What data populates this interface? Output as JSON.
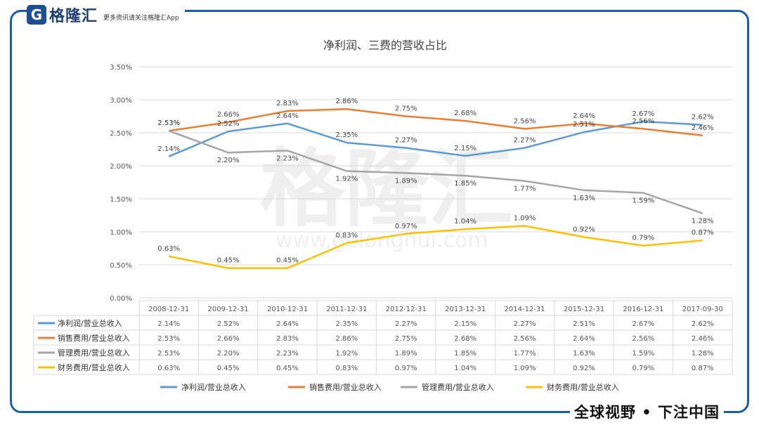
{
  "brand": {
    "logo_letter": "G",
    "name": "格隆汇",
    "tagline": "更多资讯请关注格隆汇App",
    "slogan": "全球视野 • 下注中国",
    "watermark": "格隆汇",
    "watermark_url": "www.gelonghui.com",
    "frame_color": "#1a5ea8"
  },
  "chart_data": {
    "type": "line",
    "title": "净利润、三费的营收占比",
    "categories": [
      "2008-12-31",
      "2009-12-31",
      "2010-12-31",
      "2011-12-31",
      "2012-12-31",
      "2013-12-31",
      "2014-12-31",
      "2015-12-31",
      "2016-12-31",
      "2017-09-30"
    ],
    "ylim": [
      0,
      3.5
    ],
    "yticks": [
      "0.00%",
      "0.50%",
      "1.00%",
      "1.50%",
      "2.00%",
      "2.50%",
      "3.00%",
      "3.50%"
    ],
    "grid": true,
    "legend_position": "bottom",
    "series": [
      {
        "name": "净利润/营业总收入",
        "color": "#5b9bd5",
        "values": [
          2.14,
          2.52,
          2.64,
          2.35,
          2.27,
          2.15,
          2.27,
          2.51,
          2.67,
          2.62
        ],
        "labels": [
          "2.14%",
          "2.52%",
          "2.64%",
          "2.35%",
          "2.27%",
          "2.15%",
          "2.27%",
          "2.51%",
          "2.67%",
          "2.62%"
        ]
      },
      {
        "name": "销售费用/营业总收入",
        "color": "#ed7d31",
        "values": [
          2.53,
          2.66,
          2.83,
          2.86,
          2.75,
          2.68,
          2.56,
          2.64,
          2.56,
          2.46
        ],
        "labels": [
          "2.53%",
          "2.66%",
          "2.83%",
          "2.86%",
          "2.75%",
          "2.68%",
          "2.56%",
          "2.64%",
          "2.56%",
          "2.46%"
        ]
      },
      {
        "name": "管理费用/营业总收入",
        "color": "#a5a5a5",
        "values": [
          2.53,
          2.2,
          2.23,
          1.92,
          1.89,
          1.85,
          1.77,
          1.63,
          1.59,
          1.28
        ],
        "labels": [
          "2.53%",
          "2.20%",
          "2.23%",
          "1.92%",
          "1.89%",
          "1.85%",
          "1.77%",
          "1.63%",
          "1.59%",
          "1.28%"
        ]
      },
      {
        "name": "财务费用/营业总收入",
        "color": "#ffc000",
        "values": [
          0.63,
          0.45,
          0.45,
          0.83,
          0.97,
          1.04,
          1.09,
          0.92,
          0.79,
          0.87
        ],
        "labels": [
          "0.63%",
          "0.45%",
          "0.45%",
          "0.83%",
          "0.97%",
          "1.04%",
          "1.09%",
          "0.92%",
          "0.79%",
          "0.87%"
        ]
      }
    ]
  }
}
